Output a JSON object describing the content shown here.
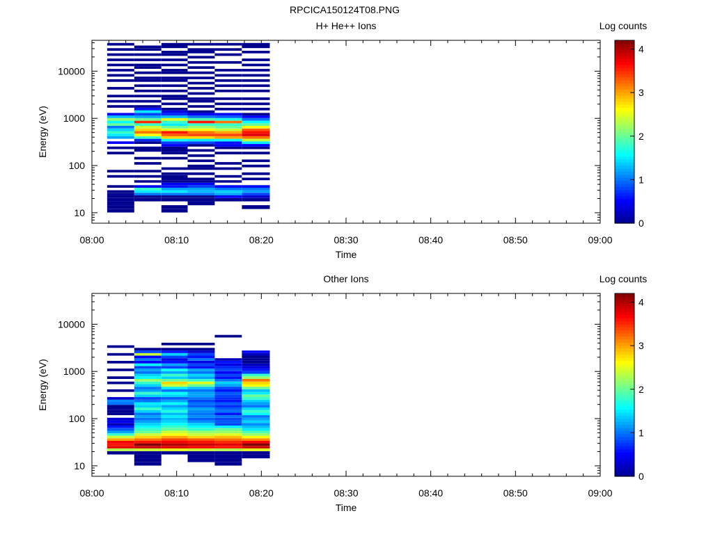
{
  "figure_title": "RPCICA150124T08.PNG",
  "colors": {
    "colormap": [
      "#00008f",
      "#0000ff",
      "#0080ff",
      "#00ffff",
      "#80ff80",
      "#ffff00",
      "#ff8000",
      "#ff0000",
      "#800000"
    ]
  },
  "chart_data": [
    {
      "type": "heatmap",
      "title": "H+ He++ Ions",
      "xlabel": "Time",
      "ylabel": "Energy (eV)",
      "x_ticks": [
        "08:00",
        "08:10",
        "08:20",
        "08:30",
        "08:40",
        "08:50",
        "09:00"
      ],
      "xlim_minutes": [
        0,
        60
      ],
      "y_scale": "log",
      "ylim": [
        6,
        45000
      ],
      "y_ticks": [
        10,
        100,
        1000,
        10000
      ],
      "y_tick_labels": [
        "10",
        "100",
        "1000",
        "10000"
      ],
      "colorbar": {
        "label": "Log counts",
        "range": [
          0,
          4.2
        ],
        "ticks": [
          "0",
          "1",
          "2",
          "3",
          "4"
        ]
      },
      "time_bins_minutes": [
        [
          1.8,
          5.0
        ],
        [
          5.0,
          8.2
        ],
        [
          8.2,
          11.3
        ],
        [
          11.3,
          14.5
        ],
        [
          14.5,
          17.7
        ],
        [
          17.7,
          21.0
        ]
      ],
      "energy_levels_eV": [
        11,
        13,
        16,
        19,
        22,
        25,
        28,
        32,
        36,
        41,
        46,
        52,
        59,
        67,
        76,
        86,
        98,
        111,
        126,
        143,
        162,
        184,
        209,
        237,
        269,
        305,
        346,
        392,
        445,
        505,
        573,
        650,
        738,
        837,
        950,
        1078,
        1223,
        1388,
        1575,
        1787,
        2028,
        2301,
        2611,
        2963,
        3362,
        3815,
        4329,
        4912,
        5574,
        6325,
        7177,
        8144,
        9241,
        10486,
        11899,
        13502,
        15321,
        17385,
        19727,
        22384,
        25400,
        28822,
        32705,
        37111
      ],
      "values": [
        [
          0,
          0,
          0,
          0,
          0,
          0,
          0,
          null,
          0,
          null,
          null,
          null,
          0,
          null,
          0,
          null,
          null,
          null,
          null,
          null,
          null,
          0,
          null,
          0,
          null,
          0.5,
          null,
          1.2,
          1.5,
          1.8,
          1.4,
          1.0,
          2.0,
          1.6,
          2.2,
          1.3,
          0.5,
          null,
          null,
          0,
          null,
          0,
          null,
          0,
          null,
          null,
          0,
          null,
          null,
          0,
          null,
          0,
          null,
          0,
          null,
          0,
          null,
          0,
          null,
          0,
          null,
          0,
          null,
          0
        ],
        [
          null,
          null,
          null,
          0,
          0,
          1.0,
          1.5,
          1.8,
          0.5,
          null,
          0,
          null,
          0,
          null,
          0,
          null,
          null,
          0,
          null,
          0,
          null,
          null,
          0,
          0,
          null,
          0,
          0.7,
          1.8,
          2.6,
          3.2,
          2.8,
          2.4,
          1.8,
          3.5,
          2.0,
          1.2,
          0.8,
          1.5,
          0.6,
          0,
          null,
          0,
          null,
          0,
          null,
          0,
          null,
          0,
          null,
          0,
          0,
          null,
          0,
          null,
          0,
          0,
          null,
          0,
          null,
          0,
          null,
          0,
          0,
          null
        ],
        [
          0,
          0,
          null,
          0,
          0,
          1.0,
          1.5,
          1.2,
          0.6,
          0.5,
          0,
          0,
          0,
          0,
          null,
          0,
          null,
          null,
          null,
          0,
          null,
          0,
          0,
          0,
          0.5,
          0.8,
          1.6,
          2.8,
          3.3,
          3.6,
          2.5,
          2.0,
          1.5,
          1.8,
          2.5,
          1.3,
          0.7,
          0.4,
          0,
          null,
          0,
          null,
          0,
          0,
          null,
          0,
          null,
          0,
          null,
          0,
          0,
          null,
          0,
          0,
          null,
          0,
          null,
          0,
          null,
          0,
          0,
          null,
          0,
          0
        ],
        [
          null,
          null,
          0,
          0,
          0,
          1.0,
          1.3,
          1.2,
          0.8,
          0.5,
          0,
          0,
          null,
          0,
          null,
          0,
          0,
          null,
          0,
          null,
          0,
          null,
          0,
          null,
          0,
          0.8,
          1.5,
          2.8,
          3.4,
          3.2,
          2.6,
          2.2,
          1.8,
          3.6,
          1.9,
          1.0,
          0.5,
          0,
          null,
          0,
          null,
          0,
          0,
          null,
          0,
          null,
          0,
          null,
          0,
          null,
          0,
          null,
          0,
          null,
          0,
          null,
          0,
          null,
          0,
          null,
          0,
          0,
          null,
          0
        ],
        [
          null,
          null,
          null,
          0,
          0.5,
          1.2,
          1.4,
          1.0,
          0.5,
          null,
          0,
          null,
          0,
          null,
          null,
          0,
          null,
          0,
          null,
          null,
          null,
          0,
          null,
          0,
          0.5,
          0.6,
          1.6,
          3.0,
          3.4,
          3.0,
          2.4,
          2.0,
          1.8,
          3.2,
          1.7,
          0.9,
          0.5,
          null,
          0,
          null,
          0,
          null,
          0,
          null,
          null,
          0,
          null,
          0,
          null,
          0,
          null,
          0,
          null,
          0,
          null,
          null,
          0,
          null,
          null,
          0,
          null,
          0,
          null,
          0
        ],
        [
          null,
          0,
          null,
          0,
          0.3,
          0.8,
          1.2,
          1.0,
          0.5,
          null,
          null,
          0,
          null,
          0,
          null,
          null,
          0,
          null,
          0,
          null,
          null,
          0,
          null,
          0,
          0.5,
          1.5,
          2.4,
          3.2,
          3.8,
          3.6,
          3.3,
          2.6,
          2.0,
          1.6,
          1.0,
          0.5,
          0,
          null,
          0,
          null,
          0,
          null,
          0,
          null,
          null,
          0,
          null,
          0,
          null,
          0,
          null,
          0,
          null,
          0,
          null,
          0,
          null,
          0,
          null,
          null,
          0,
          null,
          0,
          0
        ]
      ]
    },
    {
      "type": "heatmap",
      "title": "Other Ions",
      "xlabel": "Time",
      "ylabel": "Energy (eV)",
      "x_ticks": [
        "08:00",
        "08:10",
        "08:20",
        "08:30",
        "08:40",
        "08:50",
        "09:00"
      ],
      "xlim_minutes": [
        0,
        60
      ],
      "y_scale": "log",
      "ylim": [
        6,
        45000
      ],
      "y_ticks": [
        10,
        100,
        1000,
        10000
      ],
      "y_tick_labels": [
        "10",
        "100",
        "1000",
        "10000"
      ],
      "colorbar": {
        "label": "Log counts",
        "range": [
          0,
          4.2
        ],
        "ticks": [
          "0",
          "1",
          "2",
          "3",
          "4"
        ]
      },
      "time_bins_minutes": [
        [
          1.8,
          5.0
        ],
        [
          5.0,
          8.2
        ],
        [
          8.2,
          11.3
        ],
        [
          11.3,
          14.5
        ],
        [
          14.5,
          17.7
        ],
        [
          17.7,
          21.0
        ]
      ],
      "energy_levels_eV": [
        11,
        13,
        16,
        19,
        22,
        25,
        28,
        32,
        36,
        41,
        46,
        52,
        59,
        67,
        76,
        86,
        98,
        111,
        126,
        143,
        162,
        184,
        209,
        237,
        269,
        305,
        346,
        392,
        445,
        505,
        573,
        650,
        738,
        837,
        950,
        1078,
        1223,
        1388,
        1575,
        1787,
        2028,
        2301,
        2611,
        2963,
        3362,
        3815,
        4329,
        4912,
        5574,
        6325,
        7177,
        8144,
        9241,
        10486,
        11899,
        13502,
        15321,
        17385,
        19727,
        22384,
        25400,
        28822,
        32705,
        37111
      ],
      "values": [
        [
          null,
          null,
          null,
          0,
          2.3,
          3.8,
          3.6,
          3.7,
          3.0,
          2.4,
          1.8,
          1.2,
          0.9,
          0.6,
          0.2,
          0.5,
          0.3,
          null,
          0,
          0,
          0,
          0,
          1.0,
          1.1,
          0.3,
          null,
          null,
          0,
          null,
          null,
          0,
          null,
          0,
          null,
          null,
          0,
          null,
          null,
          0,
          null,
          null,
          0,
          null,
          null,
          0,
          null,
          null,
          null,
          null,
          null,
          null,
          null,
          null,
          null,
          null,
          null,
          null,
          null,
          null,
          null,
          null,
          null,
          null,
          null
        ],
        [
          0,
          0,
          0,
          0,
          2.4,
          3.9,
          4.2,
          3.6,
          3.2,
          2.8,
          2.4,
          2.0,
          1.8,
          1.6,
          1.4,
          1.2,
          1.0,
          1.2,
          1.0,
          1.4,
          1.8,
          1.4,
          1.5,
          1.0,
          0.8,
          1.4,
          1.8,
          1.2,
          1.0,
          1.4,
          1.8,
          2.2,
          1.6,
          1.4,
          1.0,
          1.2,
          0.8,
          1.6,
          0.5,
          1.0,
          0.5,
          2.4,
          0.8,
          0,
          null,
          null,
          null,
          null,
          null,
          null,
          null,
          null,
          null,
          null,
          null,
          null,
          null,
          null,
          null,
          null,
          null,
          null,
          null,
          null
        ],
        [
          null,
          null,
          null,
          0,
          2.5,
          3.8,
          4.0,
          3.7,
          3.4,
          3.0,
          2.6,
          2.4,
          2.0,
          1.8,
          1.6,
          1.4,
          1.3,
          1.5,
          1.3,
          1.7,
          1.4,
          1.2,
          1.6,
          1.2,
          0.9,
          1.4,
          1.6,
          1.0,
          1.5,
          2.4,
          2.8,
          2.0,
          1.4,
          1.8,
          1.2,
          1.6,
          0.8,
          1.2,
          0.6,
          0.4,
          0.8,
          1.4,
          0.6,
          0,
          null,
          0,
          null,
          null,
          null,
          null,
          null,
          null,
          null,
          null,
          null,
          null,
          null,
          null,
          null,
          null,
          null,
          null,
          null,
          null
        ],
        [
          null,
          0,
          0,
          0,
          2.4,
          3.7,
          3.9,
          3.6,
          3.3,
          2.8,
          2.4,
          2.2,
          1.8,
          1.6,
          1.4,
          1.1,
          0.9,
          1.1,
          1.0,
          1.1,
          1.2,
          0.9,
          1.0,
          0.8,
          1.0,
          1.2,
          1.2,
          1.0,
          1.3,
          2.0,
          2.5,
          1.8,
          1.2,
          1.4,
          1.0,
          1.2,
          0.6,
          0.8,
          0.4,
          1.0,
          0.6,
          0.8,
          0.3,
          0,
          null,
          0,
          null,
          null,
          null,
          null,
          null,
          null,
          null,
          null,
          null,
          null,
          null,
          null,
          null,
          null,
          null,
          null,
          null,
          null
        ],
        [
          0,
          0,
          0,
          0,
          2.3,
          3.6,
          3.8,
          3.5,
          3.2,
          2.9,
          2.5,
          2.2,
          2.0,
          1.5,
          0.8,
          0.9,
          0.8,
          1.0,
          0.6,
          1.0,
          0.9,
          0.7,
          0.9,
          0.6,
          0.7,
          0.8,
          0.9,
          0.6,
          0.8,
          1.2,
          1.4,
          1.0,
          0.6,
          0.8,
          0.5,
          0.8,
          0.7,
          0.4,
          0.6,
          0.2,
          null,
          null,
          null,
          null,
          null,
          null,
          null,
          null,
          0,
          null,
          null,
          null,
          null,
          null,
          null,
          null,
          null,
          null,
          null,
          null,
          null,
          null,
          null,
          null
        ],
        [
          null,
          null,
          0,
          0,
          2.5,
          3.9,
          4.2,
          3.7,
          3.1,
          2.6,
          2.2,
          1.9,
          1.5,
          1.3,
          1.1,
          1.4,
          1.2,
          1.0,
          1.6,
          1.8,
          1.4,
          1.0,
          1.2,
          1.4,
          1.8,
          2.0,
          1.5,
          1.3,
          2.0,
          2.6,
          2.8,
          3.2,
          2.2,
          1.8,
          0.8,
          0.6,
          0.4,
          0.2,
          0,
          0,
          0,
          0.2,
          0.5,
          null,
          null,
          null,
          null,
          null,
          null,
          null,
          null,
          null,
          null,
          null,
          null,
          null,
          null,
          null,
          null,
          null,
          null,
          null,
          null,
          null
        ]
      ]
    }
  ]
}
